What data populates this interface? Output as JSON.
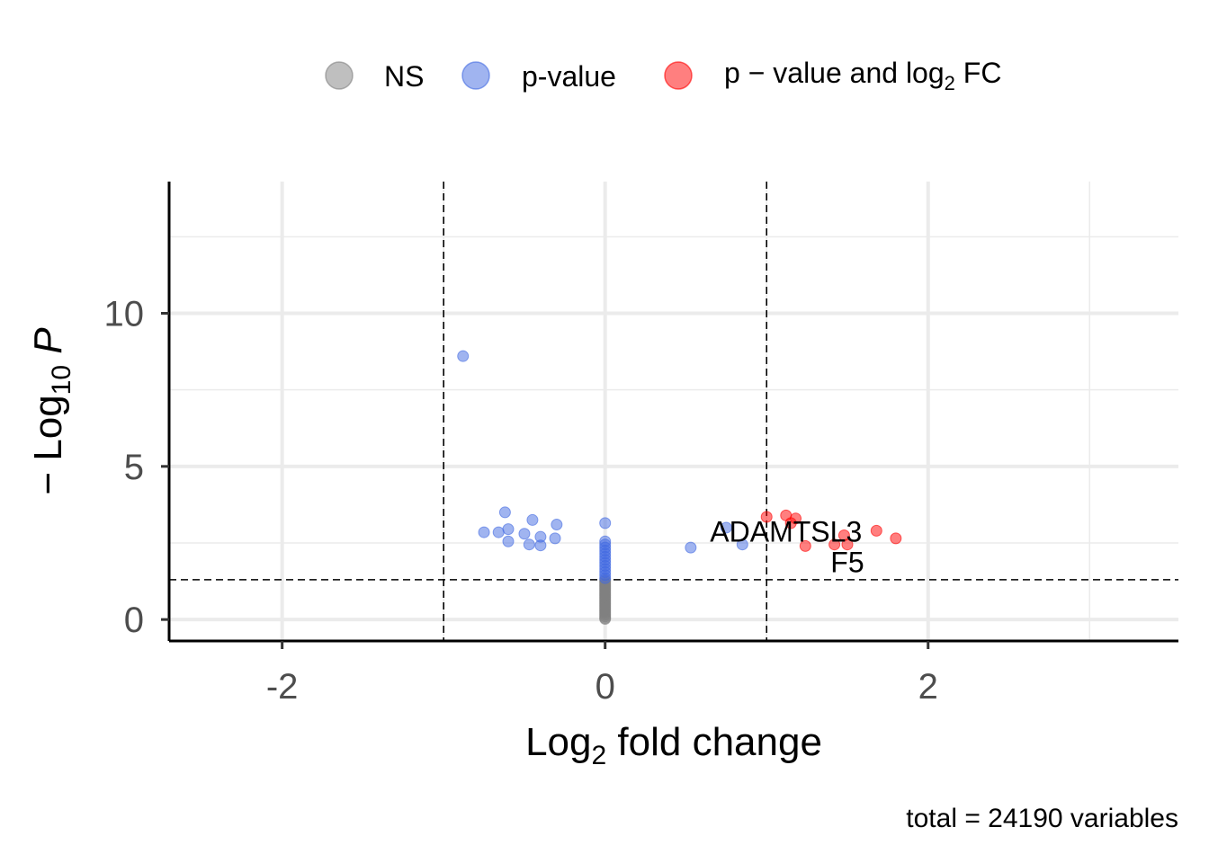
{
  "chart_data": {
    "type": "scatter",
    "title": "",
    "xlabel_main": "Log",
    "xlabel_sub": "2",
    "xlabel_rest": " fold change",
    "ylabel_prefix": "− Log",
    "ylabel_sub": "10",
    "ylabel_italic": "P",
    "xlim": [
      -2.7,
      3.55
    ],
    "ylim": [
      -0.7,
      14.3
    ],
    "x_ticks": [
      -2,
      0,
      2
    ],
    "x_tick_labels": [
      "-2",
      "0",
      "2"
    ],
    "y_ticks": [
      0,
      5,
      10
    ],
    "y_tick_labels": [
      "0",
      "5",
      "10"
    ],
    "grid": true,
    "vlines": [
      -1,
      1
    ],
    "hline": 1.3,
    "legend_position": "top",
    "legend": [
      {
        "key": "ns",
        "label": "NS",
        "color": "#808080"
      },
      {
        "key": "p",
        "label": "p-value",
        "color": "#4169e1"
      },
      {
        "key": "pfc",
        "label_main": "p − value and log",
        "label_sub": "2",
        "label_rest": " FC",
        "color": "#ff0000"
      }
    ],
    "series": [
      {
        "key": "ns",
        "color": "#808080",
        "points": [
          [
            0,
            0.02
          ],
          [
            0,
            0.05
          ],
          [
            0,
            0.1
          ],
          [
            0,
            0.15
          ],
          [
            0,
            0.2
          ],
          [
            0,
            0.25
          ],
          [
            0,
            0.3
          ],
          [
            0,
            0.35
          ],
          [
            0,
            0.4
          ],
          [
            0,
            0.45
          ],
          [
            0,
            0.5
          ],
          [
            0,
            0.55
          ],
          [
            0,
            0.6
          ],
          [
            0,
            0.65
          ],
          [
            0,
            0.7
          ],
          [
            0,
            0.75
          ],
          [
            0,
            0.8
          ],
          [
            0,
            0.85
          ],
          [
            0,
            0.9
          ],
          [
            0,
            0.95
          ],
          [
            0,
            1.0
          ],
          [
            0,
            1.05
          ],
          [
            0,
            1.1
          ],
          [
            0,
            1.15
          ],
          [
            0,
            1.2
          ],
          [
            0,
            1.25
          ],
          [
            0,
            1.29
          ]
        ]
      },
      {
        "key": "p",
        "color": "#4169e1",
        "points": [
          [
            -0.88,
            8.6
          ],
          [
            -0.62,
            3.5
          ],
          [
            -0.45,
            3.25
          ],
          [
            -0.6,
            2.95
          ],
          [
            -0.3,
            3.1
          ],
          [
            -0.75,
            2.85
          ],
          [
            -0.66,
            2.85
          ],
          [
            -0.5,
            2.8
          ],
          [
            -0.4,
            2.7
          ],
          [
            -0.31,
            2.65
          ],
          [
            -0.6,
            2.55
          ],
          [
            -0.47,
            2.45
          ],
          [
            -0.4,
            2.42
          ],
          [
            0,
            3.15
          ],
          [
            0.75,
            3.0
          ],
          [
            0.53,
            2.35
          ],
          [
            0.85,
            2.45
          ],
          [
            0,
            2.55
          ],
          [
            0,
            2.45
          ],
          [
            0,
            2.35
          ],
          [
            0,
            2.25
          ],
          [
            0,
            2.15
          ],
          [
            0,
            2.05
          ],
          [
            0,
            1.95
          ],
          [
            0,
            1.85
          ],
          [
            0,
            1.75
          ],
          [
            0,
            1.65
          ],
          [
            0,
            1.55
          ],
          [
            0,
            1.45
          ],
          [
            0,
            1.35
          ]
        ]
      },
      {
        "key": "pfc",
        "color": "#ff0000",
        "points": [
          [
            1.0,
            3.35
          ],
          [
            1.12,
            3.4
          ],
          [
            1.18,
            3.3
          ],
          [
            1.15,
            3.15
          ],
          [
            1.68,
            2.9
          ],
          [
            1.8,
            2.65
          ],
          [
            1.48,
            2.75
          ],
          [
            1.42,
            2.45
          ],
          [
            1.24,
            2.4
          ],
          [
            1.5,
            2.45
          ]
        ]
      }
    ],
    "annotations": [
      {
        "text": "ADAMTSL3",
        "x": 1.12,
        "y": 2.55
      },
      {
        "text": "F5",
        "x": 1.5,
        "y": 1.55
      }
    ],
    "caption": "total = 24190 variables"
  }
}
